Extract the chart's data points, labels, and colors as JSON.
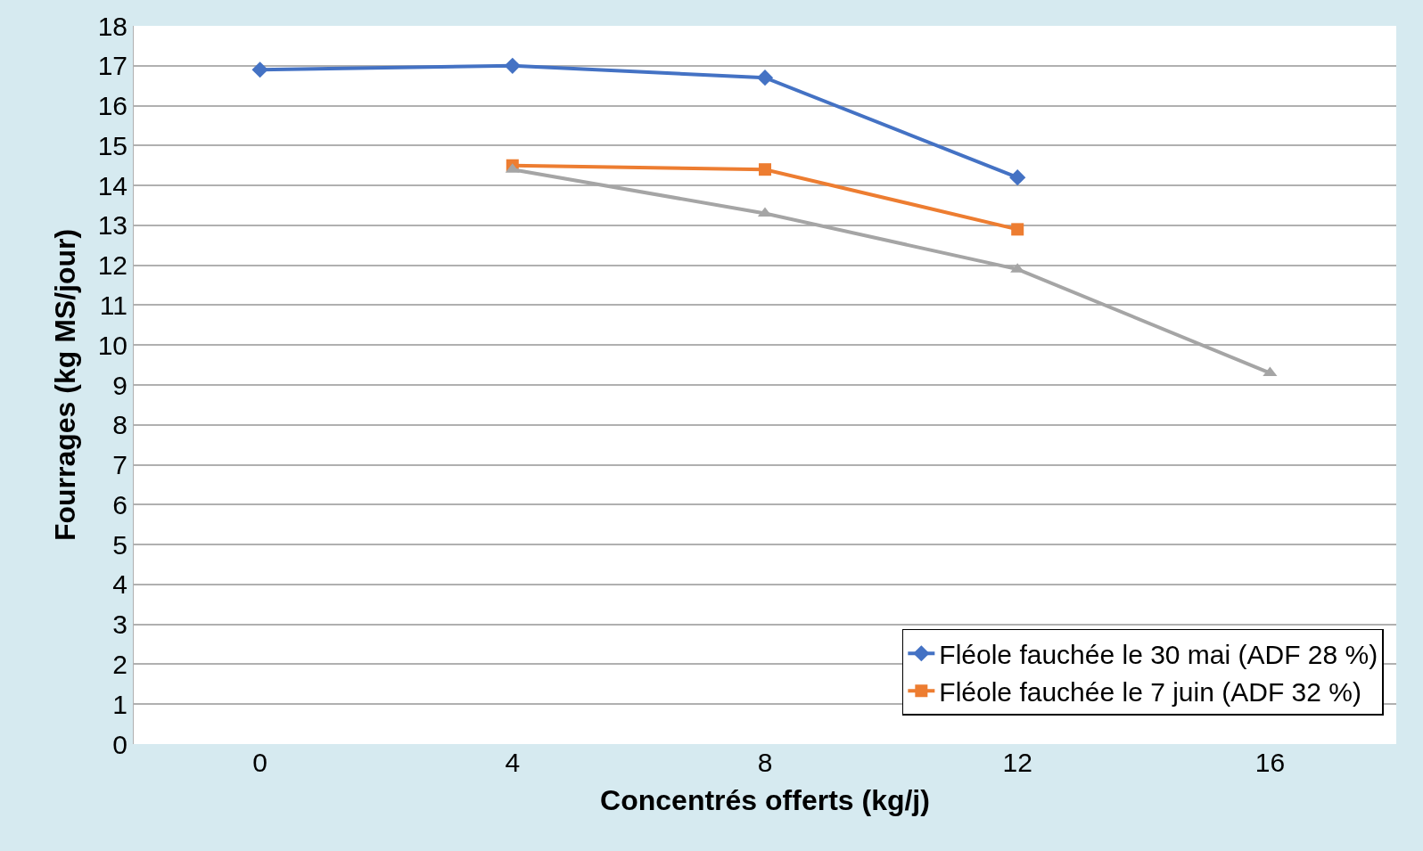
{
  "chart_data": {
    "type": "line",
    "xlabel": "Concentrés offerts (kg/j)",
    "ylabel": "Fourrages (kg MS/jour)",
    "categories": [
      "0",
      "4",
      "8",
      "12",
      "16"
    ],
    "series": [
      {
        "name": "Fléole fauchée le 30 mai (ADF 28 %)",
        "color": "#4472c4",
        "marker": "diamond",
        "values": [
          16.9,
          17.0,
          16.7,
          14.2,
          null
        ]
      },
      {
        "name": "Fléole fauchée le 7 juin (ADF 32 %)",
        "color": "#ed7d31",
        "marker": "square",
        "values": [
          null,
          14.5,
          14.4,
          12.9,
          null
        ]
      },
      {
        "color": "#a5a5a5",
        "marker": "triangle",
        "values": [
          null,
          14.4,
          13.3,
          11.9,
          9.3
        ]
      }
    ],
    "ylim": [
      0,
      18
    ],
    "yticks": [
      0,
      1,
      2,
      3,
      4,
      5,
      6,
      7,
      8,
      9,
      10,
      11,
      12,
      13,
      14,
      15,
      16,
      17,
      18
    ],
    "grid": "y",
    "legend": "bottom right",
    "line_style": "solid"
  }
}
